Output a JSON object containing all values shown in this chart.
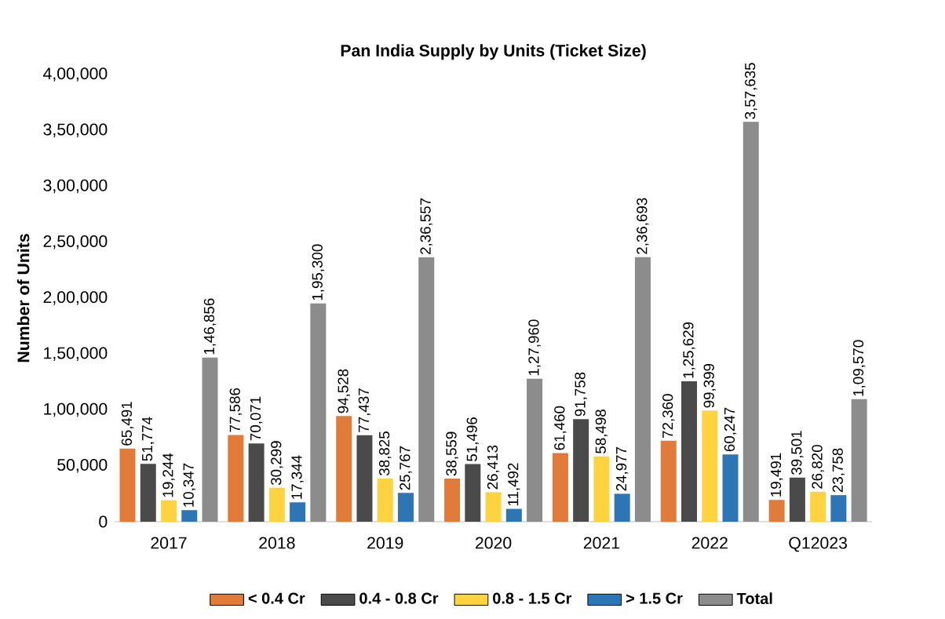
{
  "chart_data": {
    "type": "bar",
    "title": "Pan India Supply by Units (Ticket Size)",
    "ylabel": "Number of Units",
    "categories": [
      "2017",
      "2018",
      "2019",
      "2020",
      "2021",
      "2022",
      "Q12023"
    ],
    "series": [
      {
        "name": "< 0.4 Cr",
        "color": "#e07b39",
        "values": [
          65491,
          77586,
          94528,
          38559,
          61460,
          72360,
          19491
        ],
        "value_labels": [
          "65,491",
          "77,586",
          "94,528",
          "38,559",
          "61,460",
          "72,360",
          "19,491"
        ]
      },
      {
        "name": "0.4 - 0.8 Cr",
        "color": "#4a4a4a",
        "values": [
          51774,
          70071,
          77437,
          51496,
          91758,
          125629,
          39501
        ],
        "value_labels": [
          "51,774",
          "70,071",
          "77,437",
          "51,496",
          "91,758",
          "1,25,629",
          "39,501"
        ]
      },
      {
        "name": "0.8 - 1.5 Cr",
        "color": "#ffd23f",
        "values": [
          19244,
          30299,
          38825,
          26413,
          58498,
          99399,
          26820
        ],
        "value_labels": [
          "19,244",
          "30,299",
          "38,825",
          "26,413",
          "58,498",
          "99,399",
          "26,820"
        ]
      },
      {
        "name": "> 1.5 Cr",
        "color": "#2e75b6",
        "values": [
          10347,
          17344,
          25767,
          11492,
          24977,
          60247,
          23758
        ],
        "value_labels": [
          "10,347",
          "17,344",
          "25,767",
          "11,492",
          "24,977",
          "60,247",
          "23,758"
        ]
      },
      {
        "name": "Total",
        "color": "#8c8c8c",
        "values": [
          146856,
          195300,
          236557,
          127960,
          236693,
          357635,
          109570
        ],
        "value_labels": [
          "1,46,856",
          "1,95,300",
          "2,36,557",
          "1,27,960",
          "2,36,693",
          "3,57,635",
          "1,09,570"
        ]
      }
    ],
    "ylim": [
      0,
      400000
    ],
    "yticks": [
      0,
      {
        "value": 50000,
        "label": "50,000"
      },
      {
        "value": 100000,
        "label": "1,00,000"
      },
      {
        "value": 150000,
        "label": "1,50,000"
      },
      {
        "value": 200000,
        "label": "2,00,000"
      },
      {
        "value": 250000,
        "label": "2,50,000"
      },
      {
        "value": 300000,
        "label": "3,00,000"
      },
      {
        "value": 350000,
        "label": "3,50,000"
      },
      {
        "value": 400000,
        "label": "4,00,000"
      }
    ],
    "legend": "bottom"
  }
}
